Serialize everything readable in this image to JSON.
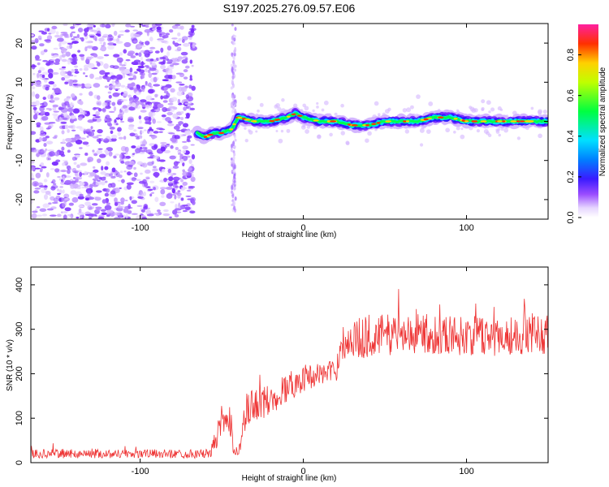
{
  "figure": {
    "title": "S197.2025.276.09.57.E06"
  },
  "chart_data": [
    {
      "type": "heatmap",
      "title": "",
      "xlabel": "Height of straight line (km)",
      "ylabel": "Frequency (Hz)",
      "xlim": [
        -167,
        150
      ],
      "ylim": [
        -25,
        25
      ],
      "xticks": [
        "-100",
        "0",
        "100"
      ],
      "yticks": [
        "-20",
        "-10",
        "0",
        "10",
        "20"
      ],
      "colorbar": {
        "label": "Normalized spectral amplitude",
        "range": [
          0,
          0.95
        ],
        "ticks": [
          "0.0",
          "0.2",
          "0.4",
          "0.6",
          "0.8"
        ]
      },
      "ridge": {
        "description_points_x": [
          -65,
          -60,
          -55,
          -50,
          -44,
          -40,
          -30,
          -20,
          -10,
          -5,
          0,
          10,
          20,
          30,
          40,
          50,
          60,
          70,
          80,
          90,
          100,
          110,
          120,
          130,
          140,
          150
        ],
        "frequency_hz": [
          -3,
          -4,
          -3,
          -3,
          -2,
          1,
          0,
          0,
          1,
          2,
          1,
          0,
          0,
          -1,
          -1,
          0,
          0,
          0,
          1,
          1,
          0,
          0,
          0,
          0,
          0,
          0
        ]
      },
      "noise_region_x": [
        -167,
        -67
      ]
    },
    {
      "type": "line",
      "title": "",
      "xlabel": "Height of straight line (km)",
      "ylabel": "SNR (10 * v/v)",
      "xlim": [
        -167,
        150
      ],
      "ylim": [
        0,
        440
      ],
      "xticks": [
        "-100",
        "0",
        "100"
      ],
      "yticks": [
        "0",
        "100",
        "200",
        "300",
        "400"
      ],
      "series": [
        {
          "name": "SNR",
          "color": "#ee3333",
          "envelope_x": [
            -167,
            -140,
            -100,
            -70,
            -57,
            -50,
            -45,
            -40,
            -35,
            -30,
            -20,
            -10,
            0,
            10,
            20,
            23,
            30,
            40,
            60,
            80,
            100,
            120,
            150
          ],
          "envelope_mean": [
            20,
            20,
            20,
            20,
            20,
            90,
            80,
            15,
            110,
            130,
            140,
            170,
            190,
            200,
            205,
            270,
            275,
            285,
            290,
            290,
            285,
            285,
            290
          ],
          "envelope_spread": [
            10,
            10,
            10,
            10,
            10,
            40,
            45,
            15,
            45,
            40,
            35,
            35,
            30,
            25,
            25,
            40,
            45,
            50,
            45,
            45,
            45,
            45,
            45
          ]
        }
      ]
    }
  ]
}
